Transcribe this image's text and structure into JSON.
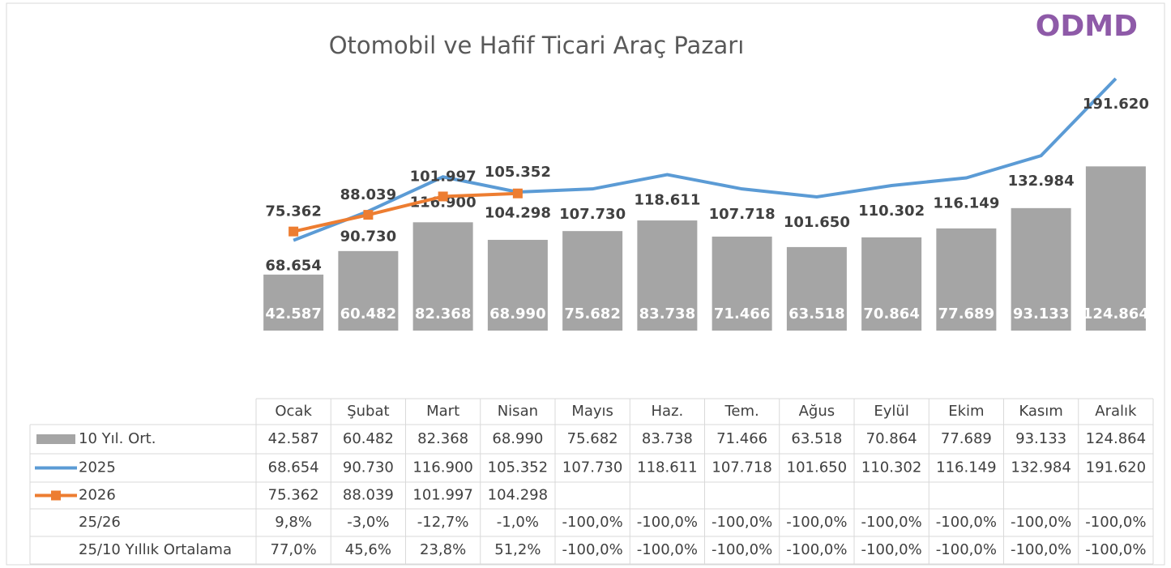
{
  "chart_data": {
    "type": "bar_line",
    "title": "Otomobil ve Hafif Ticari Araç Pazarı",
    "logo": "ODMD",
    "categories": [
      "Ocak",
      "Şubat",
      "Mart",
      "Nisan",
      "Mayıs",
      "Haz.",
      "Tem.",
      "Ağus",
      "Eylül",
      "Ekim",
      "Kasım",
      "Aralık"
    ],
    "series": [
      {
        "name": "10 Yıl. Ort.",
        "type": "bar",
        "color": "#a5a5a5",
        "values": [
          42587,
          60482,
          82368,
          68990,
          75682,
          83738,
          71466,
          63518,
          70864,
          77689,
          93133,
          124864
        ],
        "value_labels": [
          "42.587",
          "60.482",
          "82.368",
          "68.990",
          "75.682",
          "83.738",
          "71.466",
          "63.518",
          "70.864",
          "77.689",
          "93.133",
          "124.864"
        ]
      },
      {
        "name": "2025",
        "type": "line",
        "color": "#5b9bd5",
        "values": [
          68654,
          90730,
          116900,
          105352,
          107730,
          118611,
          107718,
          101650,
          110302,
          116149,
          132984,
          191620
        ],
        "value_labels": [
          "68.654",
          "90.730",
          "116.900",
          "105.352",
          "107.730",
          "118.611",
          "107.718",
          "101.650",
          "110.302",
          "116.149",
          "132.984",
          "191.620"
        ]
      },
      {
        "name": "2026",
        "type": "line",
        "marker": "square",
        "color": "#ed7d31",
        "values": [
          75362,
          88039,
          101997,
          104298,
          null,
          null,
          null,
          null,
          null,
          null,
          null,
          null
        ],
        "value_labels": [
          "75.362",
          "88.039",
          "101.997",
          "104.298",
          null,
          null,
          null,
          null,
          null,
          null,
          null,
          null
        ]
      }
    ],
    "table_rows": [
      {
        "name": "25/26",
        "cells": [
          "9,8%",
          "-3,0%",
          "-12,7%",
          "-1,0%",
          "-100,0%",
          "-100,0%",
          "-100,0%",
          "-100,0%",
          "-100,0%",
          "-100,0%",
          "-100,0%",
          "-100,0%"
        ]
      },
      {
        "name": "25/10 Yıllık Ortalama",
        "cells": [
          "77,0%",
          "45,6%",
          "23,8%",
          "51,2%",
          "-100,0%",
          "-100,0%",
          "-100,0%",
          "-100,0%",
          "-100,0%",
          "-100,0%",
          "-100,0%",
          "-100,0%"
        ]
      }
    ]
  }
}
